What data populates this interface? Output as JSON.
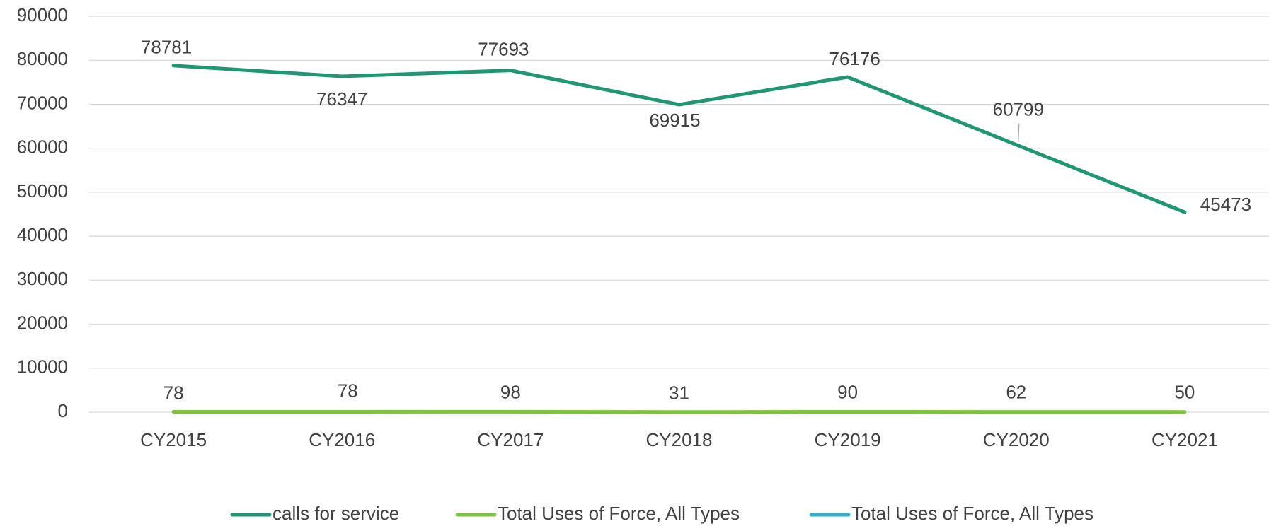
{
  "chart_data": {
    "type": "line",
    "categories": [
      "CY2015",
      "CY2016",
      "CY2017",
      "CY2018",
      "CY2019",
      "CY2020",
      "CY2021"
    ],
    "series": [
      {
        "name": "calls for service",
        "color": "#1f9772",
        "values": [
          78781,
          76347,
          77693,
          69915,
          76176,
          60799,
          45473
        ]
      },
      {
        "name": "Total Uses of Force, All Types",
        "color": "#7fc241",
        "values": [
          78,
          78,
          98,
          31,
          90,
          62,
          50
        ]
      },
      {
        "name": "Total Uses of Force, All Types",
        "color": "#2eb1c9",
        "values": [
          null,
          null,
          null,
          null,
          null,
          null,
          null
        ]
      }
    ],
    "ylim": [
      0,
      90000
    ],
    "yticks": [
      0,
      10000,
      20000,
      30000,
      40000,
      50000,
      60000,
      70000,
      80000,
      90000
    ],
    "grid": true
  }
}
